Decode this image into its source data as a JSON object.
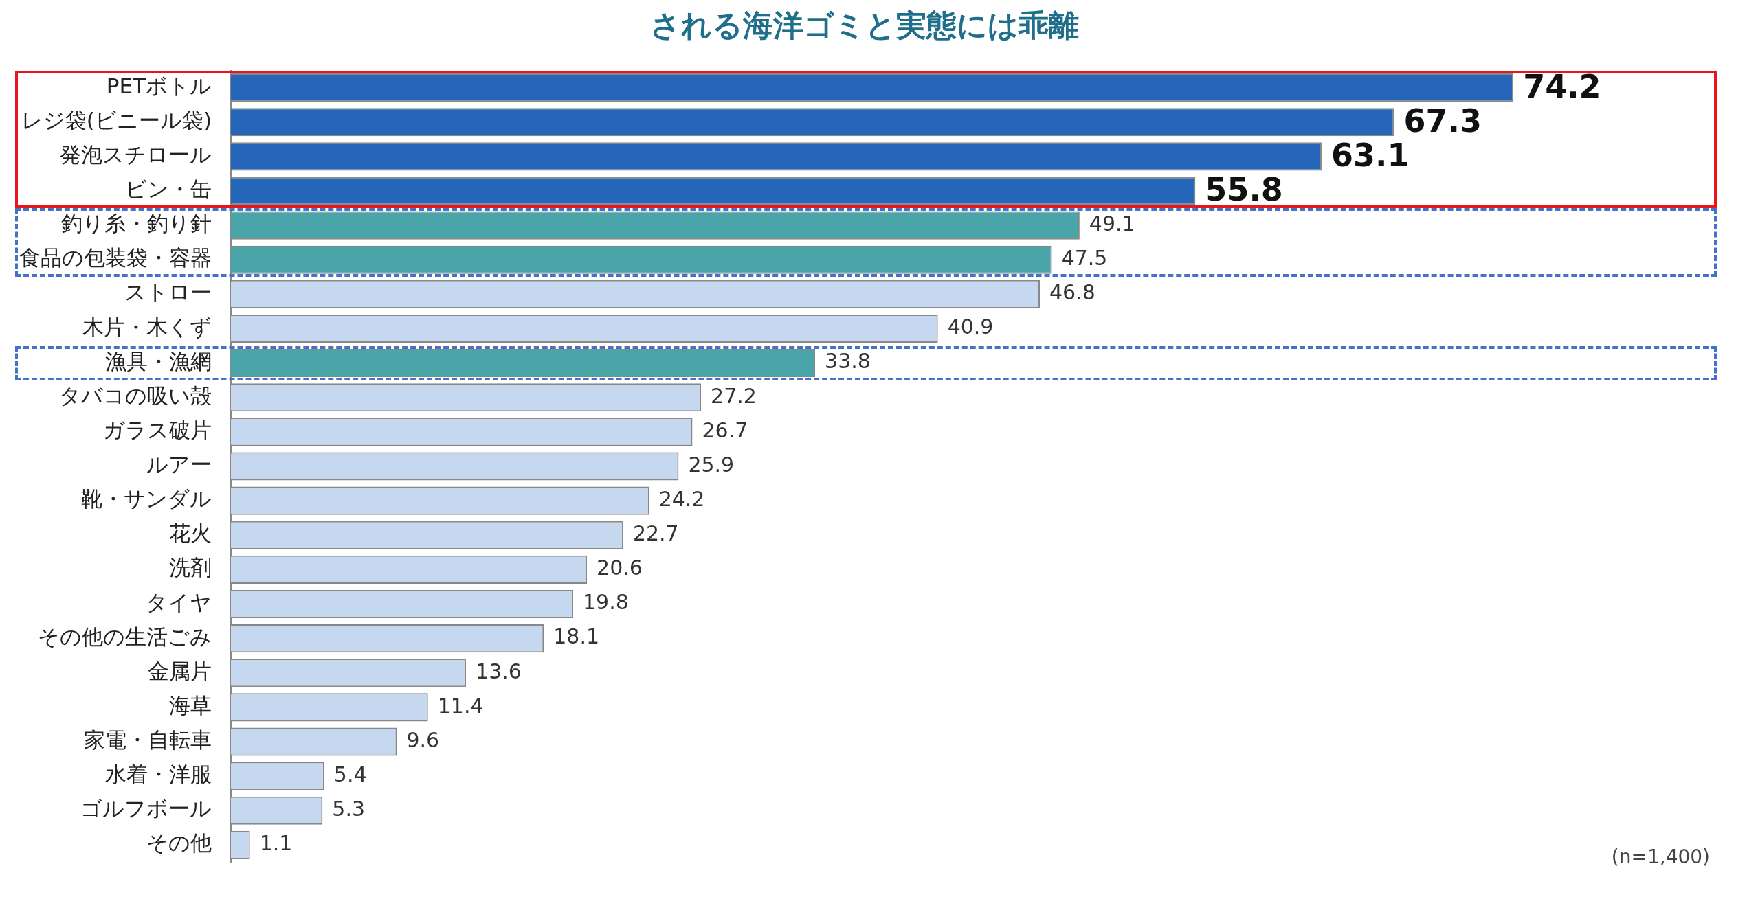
{
  "chart_data": {
    "type": "bar",
    "orientation": "horizontal",
    "title": "される海洋ゴミと実態には乖離",
    "categories": [
      "PETボトル",
      "レジ袋(ビニール袋)",
      "発泡スチロール",
      "ビン・缶",
      "釣り糸・釣り針",
      "食品の包装袋・容器",
      "ストロー",
      "木片・木くず",
      "漁具・漁網",
      "タバコの吸い殻",
      "ガラス破片",
      "ルアー",
      "靴・サンダル",
      "花火",
      "洗剤",
      "タイヤ",
      "その他の生活ごみ",
      "金属片",
      "海草",
      "家電・自転車",
      "水着・洋服",
      "ゴルフボール",
      "その他"
    ],
    "values": [
      74.2,
      67.3,
      63.1,
      55.8,
      49.1,
      47.5,
      46.8,
      40.9,
      33.8,
      27.2,
      26.7,
      25.9,
      24.2,
      22.7,
      20.6,
      19.8,
      18.1,
      13.6,
      11.4,
      9.6,
      5.4,
      5.3,
      1.1
    ],
    "colors": [
      "#2566b8",
      "#2566b8",
      "#2566b8",
      "#2566b8",
      "#4aa5a8",
      "#4aa5a8",
      "#c5d8ef",
      "#c5d8ef",
      "#4aa5a8",
      "#c5d8ef",
      "#c5d8ef",
      "#c5d8ef",
      "#c5d8ef",
      "#c5d8ef",
      "#c5d8ef",
      "#c5d8ef",
      "#c5d8ef",
      "#c5d8ef",
      "#c5d8ef",
      "#c5d8ef",
      "#c5d8ef",
      "#c5d8ef",
      "#c5d8ef"
    ],
    "data_labels": true,
    "legend": false,
    "annotations": [
      "(n=1,400)"
    ]
  }
}
